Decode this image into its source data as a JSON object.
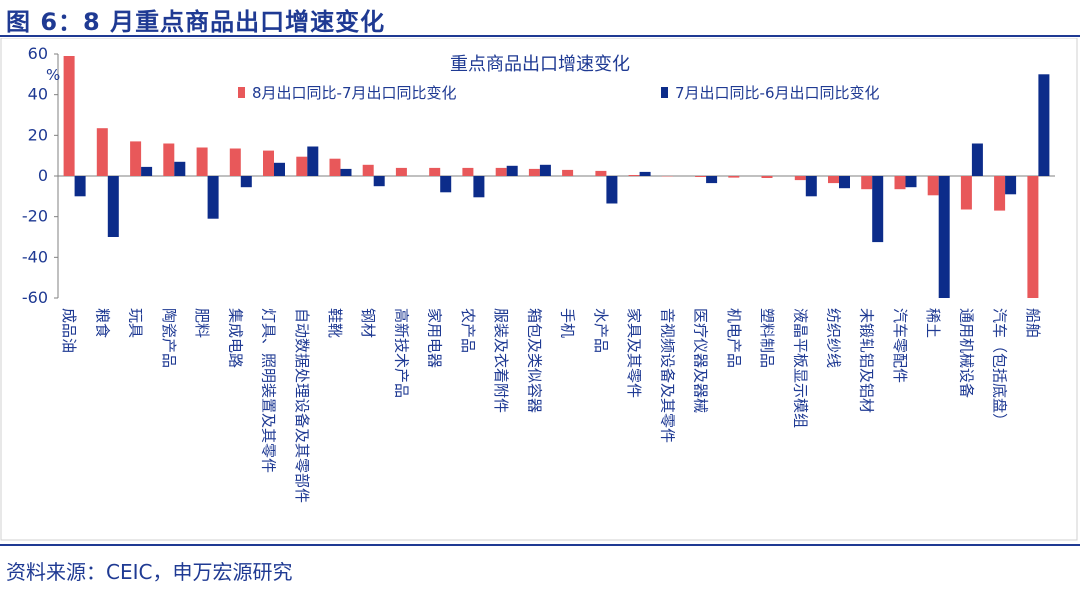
{
  "figure": {
    "title": "图 6：8 月重点商品出口增速变化",
    "source": "资料来源：CEIC，申万宏源研究"
  },
  "colors": {
    "series1": "#e8585a",
    "series2": "#0c2c8a",
    "brand": "#1f3a93"
  },
  "chart_data": {
    "type": "bar",
    "title": "重点商品出口增速变化",
    "ylabel": "%",
    "xlabel": "",
    "ylim": [
      -60,
      60
    ],
    "yticks": [
      60,
      40,
      20,
      0,
      -20,
      -40,
      -60
    ],
    "legend_position": "top",
    "categories": [
      "成品油",
      "粮食",
      "玩具",
      "陶瓷产品",
      "肥料",
      "集成电路",
      "灯具、照明装置及其零件",
      "自动数据处理设备及其零部件",
      "鞋靴",
      "钢材",
      "高新技术产品",
      "家用电器",
      "农产品",
      "服装及衣着附件",
      "箱包及类似容器",
      "手机",
      "水产品",
      "家具及其零件",
      "音视频设备及其零件",
      "医疗仪器及器械",
      "机电产品",
      "塑料制品",
      "液晶平板显示模组",
      "纺织纱线",
      "未锻轧铝及铝材",
      "汽车零配件",
      "稀土",
      "通用机械设备",
      "汽车（包括底盘）",
      "船舶"
    ],
    "series": [
      {
        "name": "8月出口同比-7月出口同比变化",
        "values": [
          59,
          23.5,
          17,
          16,
          14,
          13.5,
          12.5,
          9.5,
          8.5,
          5.5,
          4,
          4,
          4,
          4,
          3.5,
          3,
          2.5,
          0.5,
          -0.2,
          -0.5,
          -0.8,
          -1,
          -2,
          -3.5,
          -6.5,
          -6.5,
          -9.5,
          -16.5,
          -17,
          -60
        ]
      },
      {
        "name": "7月出口同比-6月出口同比变化",
        "values": [
          -10,
          -30,
          4.5,
          7,
          -21,
          -5.5,
          6.5,
          14.5,
          3.5,
          -5,
          0,
          -8,
          -10.5,
          5,
          5.5,
          0,
          -13.5,
          2,
          0,
          -3.5,
          0,
          0,
          -10,
          -6,
          -32.5,
          -5.5,
          -60,
          16,
          -9,
          50
        ]
      }
    ]
  }
}
